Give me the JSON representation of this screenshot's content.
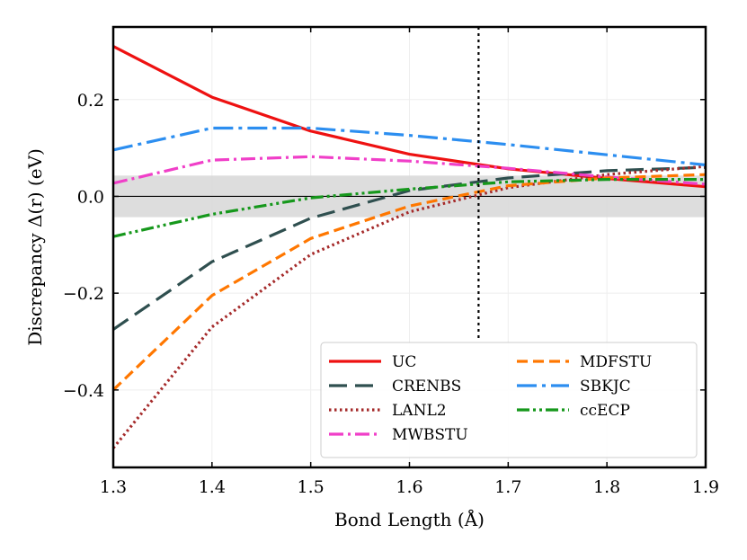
{
  "chart_data": {
    "type": "line",
    "title": "",
    "xlabel": "Bond Length (Å)",
    "ylabel": "Discrepancy Δ(r) (eV)",
    "xlim": [
      1.3,
      1.9
    ],
    "ylim": [
      -0.56,
      0.35
    ],
    "x": [
      1.3,
      1.4,
      1.5,
      1.6,
      1.7,
      1.8,
      1.9
    ],
    "xticks": [
      1.3,
      1.4,
      1.5,
      1.6,
      1.7,
      1.8,
      1.9
    ],
    "xtick_labels": [
      "1.3",
      "1.4",
      "1.5",
      "1.6",
      "1.7",
      "1.8",
      "1.9"
    ],
    "yticks": [
      -0.4,
      -0.2,
      0.0,
      0.2
    ],
    "ytick_labels": [
      "−0.4",
      "−0.2",
      "0.0",
      "0.2"
    ],
    "grid": true,
    "shaded_band": [
      -0.043,
      0.043
    ],
    "hline": 0.0,
    "vline": 1.67,
    "legend_position": "bottom-right",
    "series": [
      {
        "name": "UC",
        "color": "#ee1111",
        "style": "solid",
        "values": [
          0.31,
          0.205,
          0.135,
          0.087,
          0.057,
          0.037,
          0.02
        ]
      },
      {
        "name": "CRENBS",
        "color": "#2f4f4f",
        "style": "dashed-long",
        "values": [
          -0.275,
          -0.135,
          -0.045,
          0.012,
          0.038,
          0.053,
          0.06
        ]
      },
      {
        "name": "LANL2",
        "color": "#a52a2a",
        "style": "dotted",
        "values": [
          -0.52,
          -0.27,
          -0.12,
          -0.032,
          0.018,
          0.045,
          0.062
        ]
      },
      {
        "name": "MWBSTU",
        "color": "#f03fc8",
        "style": "dashdot",
        "values": [
          0.027,
          0.075,
          0.082,
          0.073,
          0.058,
          0.04,
          0.025
        ]
      },
      {
        "name": "MDFSTU",
        "color": "#ff7700",
        "style": "dashed",
        "values": [
          -0.4,
          -0.205,
          -0.087,
          -0.02,
          0.022,
          0.038,
          0.045
        ]
      },
      {
        "name": "SBKJC",
        "color": "#2c8ef0",
        "style": "dashdot-long",
        "values": [
          0.096,
          0.141,
          0.141,
          0.126,
          0.107,
          0.086,
          0.065
        ]
      },
      {
        "name": "ccECP",
        "color": "#16981c",
        "style": "dashdotdot",
        "values": [
          -0.083,
          -0.037,
          -0.003,
          0.015,
          0.03,
          0.035,
          0.035
        ]
      }
    ]
  }
}
